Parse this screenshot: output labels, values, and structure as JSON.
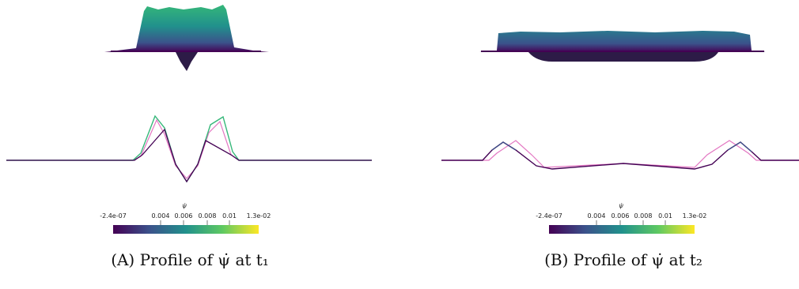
{
  "panels": [
    {
      "id": "a",
      "caption_tag": "(A)",
      "caption_text": "Profile of ψ̇ at t₁",
      "colorbar": {
        "title": "ψ̇",
        "ticks": [
          "-2.4e-07",
          "0.004",
          "0.006",
          "0.008",
          "0.01",
          "1.3e-02"
        ]
      }
    },
    {
      "id": "b",
      "caption_tag": "(B)",
      "caption_text": "Profile of ψ̇ at t₂",
      "colorbar": {
        "title": "ψ̇",
        "ticks": [
          "-2.4e-07",
          "0.004",
          "0.006",
          "0.008",
          "0.01",
          "1.3e-02"
        ]
      }
    }
  ],
  "colormap": [
    "#440154",
    "#3b528b",
    "#21918c",
    "#5ec962",
    "#fde725"
  ],
  "line_colors": {
    "simulation": "#440154",
    "reference": "#e377c2"
  }
}
